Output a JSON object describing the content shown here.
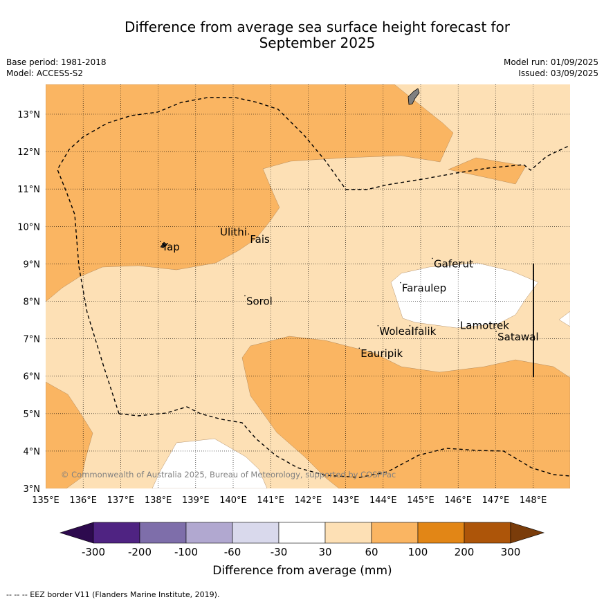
{
  "title_line1": "Difference from average sea surface height forecast for",
  "title_line2": "September 2025",
  "meta_left": [
    "Base period: 1981-2018",
    "Model: ACCESS-S2"
  ],
  "meta_right": [
    "Model run: 01/09/2025",
    "Issued: 03/09/2025"
  ],
  "x_ticks": [
    "135°E",
    "136°E",
    "137°E",
    "138°E",
    "139°E",
    "140°E",
    "141°E",
    "142°E",
    "143°E",
    "144°E",
    "145°E",
    "146°E",
    "147°E",
    "148°E"
  ],
  "y_ticks": [
    "3°N",
    "4°N",
    "5°N",
    "6°N",
    "7°N",
    "8°N",
    "9°N",
    "10°N",
    "11°N",
    "12°N",
    "13°N"
  ],
  "places": [
    {
      "name": "Yap",
      "lon": 138.1,
      "lat": 9.45
    },
    {
      "name": "Ulithi",
      "lon": 139.65,
      "lat": 9.85
    },
    {
      "name": "Fais",
      "lon": 140.45,
      "lat": 9.65
    },
    {
      "name": "Sorol",
      "lon": 140.35,
      "lat": 8.0
    },
    {
      "name": "Gaferut",
      "lon": 145.35,
      "lat": 9.0
    },
    {
      "name": "Faraulep",
      "lon": 144.5,
      "lat": 8.35
    },
    {
      "name": "Woleai",
      "lon": 143.9,
      "lat": 7.2
    },
    {
      "name": "Ifalik",
      "lon": 144.75,
      "lat": 7.2
    },
    {
      "name": "Lamotrek",
      "lon": 146.05,
      "lat": 7.35
    },
    {
      "name": "Satawal",
      "lon": 147.05,
      "lat": 7.05
    },
    {
      "name": "Eauripik",
      "lon": 143.4,
      "lat": 6.6
    }
  ],
  "copyright": "© Commonwealth of Australia 2025, Bureau of Meteorology, supported by COSPPac",
  "colorbar": {
    "ticks": [
      "-300",
      "-200",
      "-100",
      "-60",
      "-30",
      "30",
      "60",
      "100",
      "200",
      "300"
    ],
    "colors": [
      "#2d0a4e",
      "#4f2382",
      "#7e6eaa",
      "#b1a8d0",
      "#d9d9ec",
      "#ffffff",
      "#fde0b5",
      "#fab562",
      "#e28616",
      "#ad5509",
      "#7a3c0a"
    ],
    "label": "Difference from average (mm)"
  },
  "footer": "-- -- -- EEZ border V11 (Flanders Marine Institute, 2019).",
  "colors": {
    "band_30_60": "#fde0b5",
    "band_60_100": "#fab562",
    "band_under_30": "#ffffff"
  }
}
